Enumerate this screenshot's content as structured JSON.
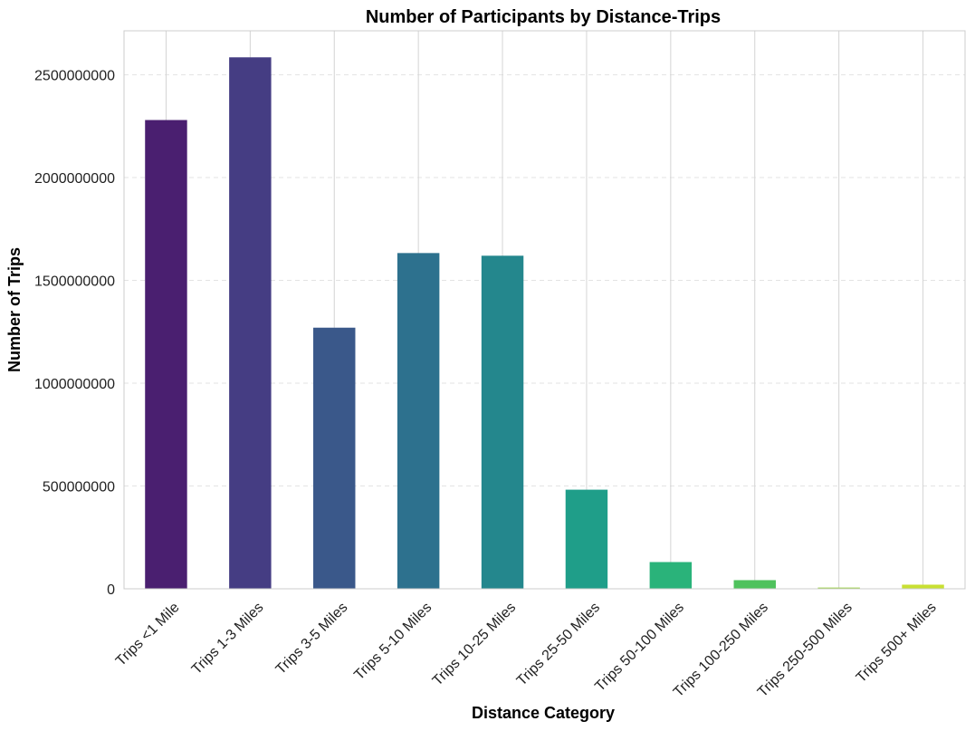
{
  "chart_data": {
    "type": "bar",
    "title": "Number of Participants by Distance-Trips",
    "xlabel": "Distance Category",
    "ylabel": "Number of Trips",
    "categories": [
      "Trips <1 Mile",
      "Trips 1-3 Miles",
      "Trips 3-5 Miles",
      "Trips 5-10 Miles",
      "Trips 10-25 Miles",
      "Trips 25-50 Miles",
      "Trips 50-100 Miles",
      "Trips 100-250 Miles",
      "Trips 250-500 Miles",
      "Trips 500+ Miles"
    ],
    "values": [
      2280000000,
      2585000000,
      1270000000,
      1633000000,
      1620000000,
      482000000,
      130000000,
      42000000,
      6000000,
      20000000
    ],
    "colors": [
      "#4a1f70",
      "#453d83",
      "#3a588a",
      "#2d718e",
      "#24878d",
      "#1f9e89",
      "#2ab37a",
      "#4fc25d",
      "#9ad240",
      "#c8e032"
    ],
    "yticks": [
      0,
      500000000,
      1000000000,
      1500000000,
      2000000000,
      2500000000
    ],
    "ytick_labels": [
      "0",
      "500000000",
      "1000000000",
      "1500000000",
      "2000000000",
      "2500000000"
    ],
    "ylim": [
      0,
      2714000000
    ],
    "grid": "vertical solid, horizontal dashed"
  }
}
